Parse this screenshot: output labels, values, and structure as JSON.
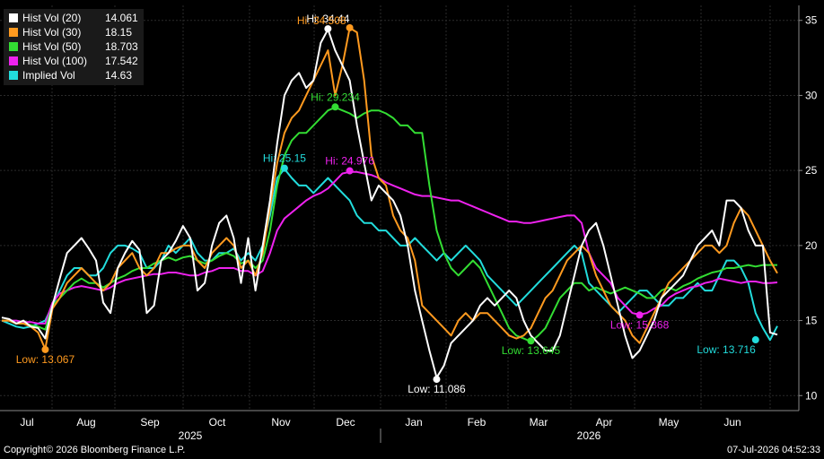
{
  "chart_data": {
    "type": "line",
    "colors": {
      "background": "#000000",
      "grid": "#2a2a2a",
      "axis_text": "#ffffff"
    },
    "ylim": [
      9,
      36
    ],
    "y_ticks": [
      10,
      15,
      20,
      25,
      30,
      35
    ],
    "grid": true,
    "legend_position": "top-left",
    "month_labels": [
      "Jul",
      "Aug",
      "Sep",
      "Oct",
      "Nov",
      "Dec",
      "Jan",
      "Feb",
      "Mar",
      "Apr",
      "May",
      "Jun"
    ],
    "year_labels": [
      "2025",
      "2026"
    ],
    "series": [
      {
        "name": "Hist Vol (20)",
        "last": "14.061",
        "color": "#ffffff",
        "values": [
          15.2,
          15.1,
          14.8,
          15.0,
          14.6,
          14.5,
          13.8,
          16.0,
          17.8,
          19.5,
          20.0,
          20.5,
          19.8,
          19.0,
          16.2,
          15.5,
          18.5,
          19.5,
          20.3,
          19.7,
          15.5,
          16.0,
          19.0,
          19.5,
          20.3,
          21.3,
          20.5,
          17.0,
          17.5,
          20.0,
          21.5,
          22.0,
          20.5,
          17.5,
          20.5,
          17.0,
          20.0,
          23.0,
          26.8,
          30.0,
          31.0,
          31.5,
          30.5,
          31.0,
          33.5,
          34.4,
          33.0,
          32.0,
          31.0,
          28.0,
          25.5,
          23.0,
          24.0,
          23.5,
          23.0,
          22.0,
          20.0,
          17.0,
          15.0,
          13.0,
          11.2,
          12.0,
          13.5,
          14.0,
          14.5,
          15.0,
          16.0,
          16.5,
          16.0,
          16.5,
          17.0,
          16.5,
          15.0,
          14.0,
          13.5,
          13.0,
          13.0,
          14.0,
          16.0,
          18.0,
          20.0,
          21.0,
          21.5,
          20.0,
          18.0,
          16.0,
          14.0,
          12.5,
          13.0,
          14.0,
          15.0,
          16.5,
          17.0,
          17.5,
          18.0,
          19.0,
          20.0,
          20.5,
          21.0,
          20.0,
          23.0,
          23.0,
          22.5,
          21.0,
          20.0,
          20.0,
          14.2,
          14.061
        ]
      },
      {
        "name": "Hist Vol (30)",
        "last": "18.15",
        "color": "#ff9a1f",
        "values": [
          15.0,
          15.0,
          14.8,
          14.8,
          14.6,
          14.2,
          13.1,
          15.8,
          16.5,
          17.5,
          18.0,
          18.5,
          18.0,
          17.5,
          17.0,
          17.5,
          18.5,
          19.0,
          19.5,
          18.5,
          18.0,
          18.5,
          19.5,
          19.5,
          19.8,
          20.0,
          20.0,
          19.0,
          18.5,
          19.5,
          20.0,
          20.5,
          20.0,
          18.5,
          19.0,
          18.0,
          19.5,
          22.5,
          25.5,
          27.5,
          28.5,
          29.0,
          30.0,
          31.0,
          32.0,
          33.0,
          30.0,
          32.0,
          34.5,
          34.2,
          31.0,
          26.0,
          24.5,
          24.0,
          22.0,
          21.0,
          20.5,
          19.0,
          16.0,
          15.5,
          15.0,
          14.5,
          14.0,
          15.0,
          15.5,
          15.0,
          15.5,
          15.5,
          15.0,
          14.5,
          14.0,
          13.8,
          14.0,
          14.5,
          15.5,
          16.5,
          17.0,
          18.0,
          19.0,
          19.5,
          20.0,
          19.5,
          18.0,
          17.0,
          16.0,
          15.5,
          15.0,
          14.0,
          13.5,
          14.5,
          15.5,
          16.5,
          17.5,
          18.0,
          18.5,
          19.0,
          19.5,
          20.0,
          20.0,
          19.5,
          20.0,
          21.5,
          22.5,
          22.0,
          21.0,
          20.0,
          19.0,
          18.15
        ]
      },
      {
        "name": "Hist Vol (50)",
        "last": "18.703",
        "color": "#33dd33",
        "values": [
          15.0,
          15.0,
          14.8,
          14.8,
          14.7,
          14.6,
          14.4,
          16.0,
          16.5,
          17.0,
          17.5,
          17.8,
          17.5,
          17.5,
          17.2,
          17.5,
          17.8,
          18.0,
          18.3,
          18.5,
          18.5,
          18.8,
          19.0,
          19.2,
          19.0,
          19.2,
          19.3,
          19.0,
          18.8,
          19.0,
          19.3,
          19.5,
          19.3,
          18.8,
          19.0,
          18.5,
          19.0,
          21.0,
          24.0,
          26.0,
          27.0,
          27.5,
          27.5,
          28.0,
          28.5,
          29.0,
          29.2,
          29.0,
          28.8,
          28.5,
          28.8,
          29.0,
          29.0,
          28.8,
          28.5,
          28.0,
          28.0,
          27.5,
          27.5,
          24.0,
          21.0,
          19.5,
          18.5,
          18.0,
          18.5,
          19.0,
          18.5,
          17.5,
          16.5,
          15.5,
          14.5,
          14.0,
          13.8,
          13.6,
          14.0,
          14.5,
          15.5,
          16.5,
          17.0,
          17.5,
          17.5,
          17.0,
          17.2,
          17.0,
          16.8,
          17.0,
          17.2,
          17.0,
          16.8,
          16.5,
          16.5,
          17.0,
          17.2,
          17.0,
          17.3,
          17.5,
          17.8,
          18.0,
          18.2,
          18.3,
          18.5,
          18.5,
          18.6,
          18.7,
          18.6,
          18.7,
          18.7,
          18.703
        ]
      },
      {
        "name": "Hist Vol (100)",
        "last": "17.542",
        "color": "#ee22ee",
        "values": [
          15.0,
          15.0,
          15.0,
          14.9,
          14.9,
          14.8,
          14.8,
          16.2,
          16.8,
          17.0,
          17.2,
          17.3,
          17.2,
          17.1,
          17.0,
          17.2,
          17.5,
          17.7,
          17.8,
          17.9,
          18.0,
          18.1,
          18.1,
          18.2,
          18.2,
          18.1,
          18.0,
          18.0,
          18.2,
          18.3,
          18.5,
          18.5,
          18.5,
          18.3,
          18.3,
          18.0,
          18.3,
          19.5,
          21.0,
          21.8,
          22.2,
          22.6,
          23.0,
          23.3,
          23.5,
          23.8,
          24.3,
          24.8,
          24.9,
          24.9,
          24.8,
          24.7,
          24.5,
          24.2,
          24.0,
          23.8,
          23.6,
          23.4,
          23.3,
          23.3,
          23.2,
          23.1,
          23.0,
          23.0,
          22.8,
          22.6,
          22.4,
          22.2,
          22.0,
          21.8,
          21.6,
          21.6,
          21.5,
          21.5,
          21.6,
          21.7,
          21.8,
          21.9,
          22.0,
          22.0,
          21.5,
          19.5,
          18.5,
          18.0,
          17.5,
          16.5,
          16.0,
          15.5,
          15.4,
          15.5,
          15.8,
          16.0,
          16.5,
          16.8,
          17.0,
          17.2,
          17.3,
          17.5,
          17.6,
          17.8,
          17.7,
          17.6,
          17.5,
          17.6,
          17.6,
          17.5,
          17.5,
          17.542
        ]
      },
      {
        "name": "Implied Vol",
        "last": "14.63",
        "color": "#22dddd",
        "values": [
          15.0,
          14.8,
          14.6,
          14.5,
          14.6,
          14.8,
          15.0,
          16.0,
          17.0,
          18.0,
          18.5,
          18.5,
          18.0,
          18.0,
          18.5,
          19.5,
          20.0,
          20.0,
          19.8,
          19.5,
          18.5,
          18.5,
          19.0,
          20.0,
          19.5,
          20.0,
          20.5,
          19.5,
          19.0,
          19.0,
          19.5,
          19.5,
          19.8,
          19.0,
          19.5,
          19.0,
          20.0,
          22.0,
          24.5,
          25.1,
          24.5,
          24.0,
          24.0,
          23.5,
          24.0,
          24.5,
          24.0,
          23.5,
          23.0,
          22.0,
          21.5,
          21.5,
          21.0,
          21.0,
          20.5,
          20.0,
          20.0,
          20.5,
          20.0,
          19.5,
          19.0,
          19.5,
          19.0,
          19.5,
          20.0,
          19.5,
          19.0,
          18.0,
          17.5,
          17.0,
          16.5,
          16.0,
          16.5,
          17.0,
          17.5,
          18.0,
          18.5,
          19.0,
          19.5,
          20.0,
          19.5,
          17.5,
          17.0,
          16.5,
          16.0,
          15.5,
          16.0,
          16.5,
          17.0,
          17.0,
          16.5,
          16.0,
          16.0,
          16.5,
          16.5,
          17.0,
          17.5,
          17.0,
          17.0,
          18.0,
          19.0,
          19.0,
          18.5,
          17.5,
          15.5,
          14.5,
          13.7,
          14.63
        ]
      }
    ],
    "annotations": [
      {
        "series": 0,
        "index": 45,
        "text": "Hi: 34.44",
        "value": 34.44,
        "pos": "above"
      },
      {
        "series": 1,
        "index": 48,
        "text": "Hi: 34.508",
        "value": 34.508,
        "pos": "above-left"
      },
      {
        "series": 2,
        "index": 46,
        "text": "Hi: 29.234",
        "value": 29.234,
        "pos": "above"
      },
      {
        "series": 3,
        "index": 48,
        "text": "Hi: 24.976",
        "value": 24.976,
        "pos": "above"
      },
      {
        "series": 4,
        "index": 39,
        "text": "Hi: 25.15",
        "value": 25.15,
        "pos": "above"
      },
      {
        "series": 0,
        "index": 60,
        "text": "Low: 11.086",
        "value": 11.086,
        "pos": "below"
      },
      {
        "series": 1,
        "index": 6,
        "text": "Low: 13.067",
        "value": 13.067,
        "pos": "below"
      },
      {
        "series": 2,
        "index": 73,
        "text": "Low: 13.645",
        "value": 13.645,
        "pos": "below"
      },
      {
        "series": 3,
        "index": 88,
        "text": "Low: 15.368",
        "value": 15.368,
        "pos": "below"
      },
      {
        "series": 4,
        "index": 104,
        "text": "Low: 13.716",
        "value": 13.716,
        "pos": "below-left"
      }
    ]
  },
  "footer": {
    "copyright": "Copyright© 2026 Bloomberg Finance L.P.",
    "timestamp": "07-Jul-2026 04:52:33"
  }
}
